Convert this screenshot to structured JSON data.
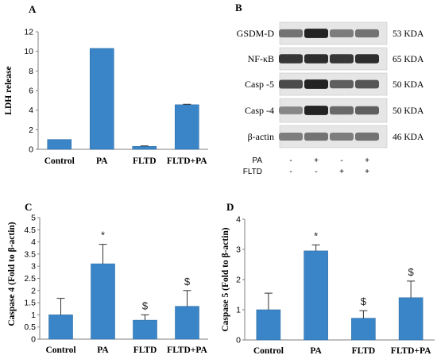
{
  "panels": {
    "A": {
      "letter": "A"
    },
    "B": {
      "letter": "B"
    },
    "C": {
      "letter": "C"
    },
    "D": {
      "letter": "D"
    }
  },
  "colors": {
    "bar": "#3a85c7",
    "bar_edge": "#2f6fa8",
    "text": "#000000"
  },
  "chart_data": [
    {
      "panel": "A",
      "type": "bar",
      "categories": [
        "Control",
        "PA",
        "FLTD",
        "FLTD+PA"
      ],
      "values": [
        1.0,
        10.3,
        0.3,
        4.55
      ],
      "error": [
        0.0,
        0.0,
        0.05,
        0.05
      ],
      "significance": [
        "",
        "",
        "",
        ""
      ],
      "ylabel": "LDH release",
      "ylim": [
        0,
        12
      ],
      "yticks": [
        "0",
        "2",
        "4",
        "6",
        "8",
        "10",
        "12"
      ],
      "grid": false
    },
    {
      "panel": "C",
      "type": "bar",
      "categories": [
        "Control",
        "PA",
        "FLTD",
        "FLTD+PA"
      ],
      "values": [
        1.0,
        3.1,
        0.78,
        1.35
      ],
      "error": [
        0.68,
        0.8,
        0.22,
        0.65
      ],
      "significance": [
        "",
        "*",
        "$",
        "$"
      ],
      "ylabel": "Caspase 4  (Fold to β-actin)",
      "ylim": [
        0,
        5
      ],
      "yticks": [
        "0",
        "0.5",
        "1",
        "1.5",
        "2",
        "2.5",
        "3",
        "3.5",
        "4",
        "4.5",
        "5"
      ],
      "grid": false
    },
    {
      "panel": "D",
      "type": "bar",
      "categories": [
        "Control",
        "PA",
        "FLTD",
        "FLTD+PA"
      ],
      "values": [
        1.0,
        2.95,
        0.72,
        1.4
      ],
      "error": [
        0.55,
        0.2,
        0.25,
        0.55
      ],
      "significance": [
        "",
        "*",
        "$",
        "$"
      ],
      "ylabel": "Caspase 5  (Fold to β-actin)",
      "ylim": [
        0,
        4
      ],
      "yticks": [
        "0",
        "1",
        "2",
        "3",
        "4"
      ],
      "grid": false
    }
  ],
  "blot": {
    "rows": [
      {
        "label": "GSDM-D",
        "kda": "53 KDA",
        "intensity": [
          0.55,
          0.95,
          0.5,
          0.55
        ]
      },
      {
        "label": "NF-κB",
        "kda": "65 KDA",
        "intensity": [
          0.85,
          0.9,
          0.85,
          0.9
        ]
      },
      {
        "label": "Casp -5",
        "kda": "50 KDA",
        "intensity": [
          0.75,
          0.95,
          0.65,
          0.7
        ]
      },
      {
        "label": "Casp -4",
        "kda": "50 KDA",
        "intensity": [
          0.45,
          0.95,
          0.6,
          0.65
        ]
      },
      {
        "label": "β-actin",
        "kda": "46 KDA",
        "intensity": [
          0.5,
          0.55,
          0.5,
          0.55
        ]
      }
    ],
    "conditions": [
      {
        "label": "PA",
        "marks": [
          "-",
          "+",
          "-",
          "+"
        ]
      },
      {
        "label": "FLTD",
        "marks": [
          "-",
          "-",
          "+",
          "+"
        ]
      }
    ]
  }
}
